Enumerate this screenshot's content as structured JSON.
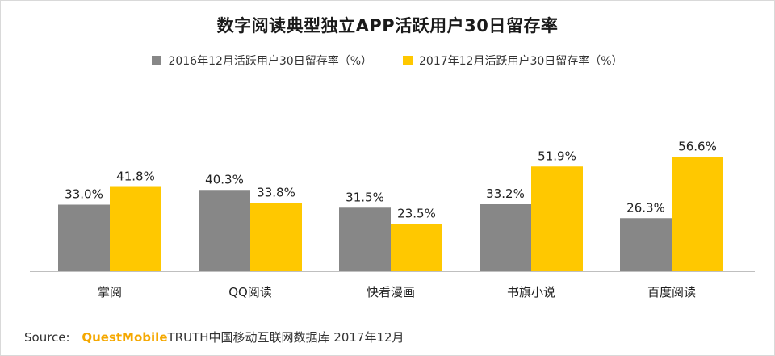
{
  "colors": {
    "series_2016": "#878787",
    "series_2017": "#ffc800",
    "axis": "#bfbfbf",
    "brand": "#f5a800"
  },
  "source": {
    "label": "Source:",
    "brand": "QuestMobile",
    "rest": "TRUTH中国移动互联网数据库 2017年12月"
  },
  "chart_data": {
    "type": "bar",
    "title": "数字阅读典型独立APP活跃用户30日留存率",
    "categories": [
      "掌阅",
      "QQ阅读",
      "快看漫画",
      "书旗小说",
      "百度阅读"
    ],
    "series": [
      {
        "name": "2016年12月活跃用户30日留存率（%）",
        "values": [
          33.0,
          40.3,
          31.5,
          33.2,
          26.3
        ],
        "labels": [
          "33.0%",
          "40.3%",
          "31.5%",
          "33.2%",
          "26.3%"
        ]
      },
      {
        "name": "2017年12月活跃用户30日留存率（%）",
        "values": [
          41.8,
          33.8,
          23.5,
          51.9,
          56.6
        ],
        "labels": [
          "41.8%",
          "33.8%",
          "23.5%",
          "51.9%",
          "56.6%"
        ]
      }
    ],
    "ylim": [
      0,
      70
    ],
    "grid": false,
    "legend_position": "top-center"
  }
}
